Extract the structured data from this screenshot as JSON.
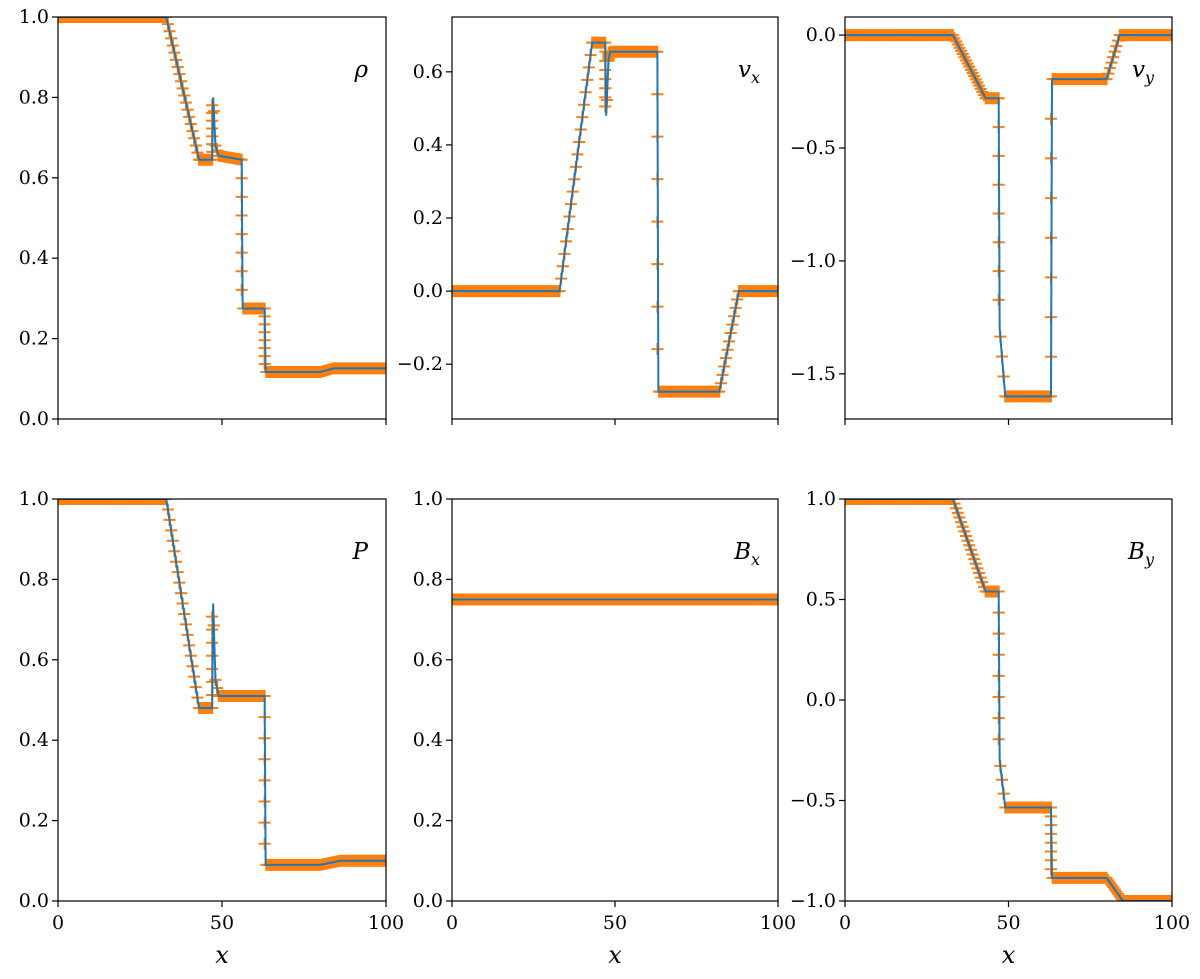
{
  "chart_data": [
    {
      "type": "line",
      "panel": "rho",
      "label": "ρ",
      "label_sub": "",
      "xlim": [
        0,
        100
      ],
      "ylim": [
        0,
        1.0
      ],
      "xticks": [
        0,
        50,
        100
      ],
      "yticks": [
        0.0,
        0.2,
        0.4,
        0.6,
        0.8,
        1.0
      ],
      "ytick_labels": [
        "0.0",
        "0.2",
        "0.4",
        "0.6",
        "0.8",
        "1.0"
      ],
      "xtick_labels": [
        "",
        "",
        ""
      ],
      "xlabel": "",
      "reference": {
        "x": [
          0,
          33,
          43,
          47,
          47.3,
          48,
          49,
          56,
          56.3,
          63,
          63.3,
          80,
          84,
          100
        ],
        "y": [
          1.0,
          1.0,
          0.645,
          0.645,
          0.8,
          0.68,
          0.655,
          0.645,
          0.275,
          0.275,
          0.117,
          0.117,
          0.126,
          0.126
        ]
      },
      "markers": {
        "x": [
          0,
          33,
          43,
          47,
          47.3,
          48,
          49,
          56,
          56.3,
          63,
          63.3,
          80,
          84,
          100
        ],
        "y": [
          1.0,
          1.0,
          0.645,
          0.645,
          0.8,
          0.68,
          0.655,
          0.645,
          0.275,
          0.275,
          0.117,
          0.117,
          0.126,
          0.126
        ]
      }
    },
    {
      "type": "line",
      "panel": "vx",
      "label": "v",
      "label_sub": "x",
      "xlim": [
        0,
        100
      ],
      "ylim": [
        -0.35,
        0.75
      ],
      "xticks": [
        0,
        50,
        100
      ],
      "yticks": [
        -0.2,
        0.0,
        0.2,
        0.4,
        0.6
      ],
      "ytick_labels": [
        "−0.2",
        "0.0",
        "0.2",
        "0.4",
        "0.6"
      ],
      "xtick_labels": [
        "",
        "",
        ""
      ],
      "xlabel": "",
      "reference": {
        "x": [
          0,
          33,
          43,
          47,
          47.3,
          48,
          48.5,
          63,
          63.3,
          82,
          88,
          100
        ],
        "y": [
          0.0,
          0.0,
          0.68,
          0.68,
          0.48,
          0.63,
          0.655,
          0.655,
          -0.275,
          -0.275,
          0.0,
          0.0
        ]
      },
      "markers": {
        "x": [
          0,
          33,
          43,
          47,
          47.3,
          48,
          48.5,
          63,
          63.3,
          82,
          88,
          100
        ],
        "y": [
          0.0,
          0.0,
          0.68,
          0.68,
          0.48,
          0.63,
          0.655,
          0.655,
          -0.275,
          -0.275,
          0.0,
          0.0
        ]
      }
    },
    {
      "type": "line",
      "panel": "vy",
      "label": "v",
      "label_sub": "y",
      "xlim": [
        0,
        100
      ],
      "ylim": [
        -1.7,
        0.08
      ],
      "xticks": [
        0,
        50,
        100
      ],
      "yticks": [
        -1.5,
        -1.0,
        -0.5,
        0.0
      ],
      "ytick_labels": [
        "−1.5",
        "−1.0",
        "−0.5",
        "0.0"
      ],
      "xtick_labels": [
        "",
        "",
        ""
      ],
      "xlabel": "",
      "reference": {
        "x": [
          0,
          33,
          43,
          47,
          47.3,
          49,
          63,
          63.3,
          80,
          84,
          100
        ],
        "y": [
          0.0,
          0.0,
          -0.28,
          -0.28,
          -1.3,
          -1.6,
          -1.6,
          -0.195,
          -0.195,
          0.0,
          0.0
        ]
      },
      "markers": {
        "x": [
          0,
          33,
          43,
          47,
          47.3,
          49,
          63,
          63.3,
          80,
          84,
          100
        ],
        "y": [
          0.0,
          0.0,
          -0.28,
          -0.28,
          -1.3,
          -1.6,
          -1.6,
          -0.195,
          -0.195,
          0.0,
          0.0
        ]
      }
    },
    {
      "type": "line",
      "panel": "P",
      "label": "P",
      "label_sub": "",
      "xlim": [
        0,
        100
      ],
      "ylim": [
        0,
        1.0
      ],
      "xticks": [
        0,
        50,
        100
      ],
      "yticks": [
        0.0,
        0.2,
        0.4,
        0.6,
        0.8,
        1.0
      ],
      "ytick_labels": [
        "0.0",
        "0.2",
        "0.4",
        "0.6",
        "0.8",
        "1.0"
      ],
      "xtick_labels": [
        "0",
        "50",
        "100"
      ],
      "xlabel": "x",
      "reference": {
        "x": [
          0,
          33,
          43,
          47,
          47.3,
          48,
          49,
          63,
          63.3,
          80,
          86,
          100
        ],
        "y": [
          1.0,
          1.0,
          0.48,
          0.48,
          0.74,
          0.55,
          0.51,
          0.51,
          0.09,
          0.09,
          0.1,
          0.1
        ]
      },
      "markers": {
        "x": [
          0,
          33,
          43,
          47,
          47.3,
          48,
          49,
          63,
          63.3,
          80,
          86,
          100
        ],
        "y": [
          1.0,
          1.0,
          0.48,
          0.48,
          0.74,
          0.55,
          0.51,
          0.51,
          0.09,
          0.09,
          0.1,
          0.1
        ]
      }
    },
    {
      "type": "line",
      "panel": "Bx",
      "label": "B",
      "label_sub": "x",
      "xlim": [
        0,
        100
      ],
      "ylim": [
        0,
        1.0
      ],
      "xticks": [
        0,
        50,
        100
      ],
      "yticks": [
        0.0,
        0.2,
        0.4,
        0.6,
        0.8,
        1.0
      ],
      "ytick_labels": [
        "0.0",
        "0.2",
        "0.4",
        "0.6",
        "0.8",
        "1.0"
      ],
      "xtick_labels": [
        "0",
        "50",
        "100"
      ],
      "xlabel": "x",
      "reference": {
        "x": [
          0,
          100
        ],
        "y": [
          0.75,
          0.75
        ]
      },
      "markers": {
        "x": [
          0,
          100
        ],
        "y": [
          0.75,
          0.75
        ]
      }
    },
    {
      "type": "line",
      "panel": "By",
      "label": "B",
      "label_sub": "y",
      "xlim": [
        0,
        100
      ],
      "ylim": [
        -1.0,
        1.0
      ],
      "xticks": [
        0,
        50,
        100
      ],
      "yticks": [
        -1.0,
        -0.5,
        0.0,
        0.5,
        1.0
      ],
      "ytick_labels": [
        "−1.0",
        "−0.5",
        "0.0",
        "0.5",
        "1.0"
      ],
      "xtick_labels": [
        "0",
        "50",
        "100"
      ],
      "xlabel": "x",
      "reference": {
        "x": [
          0,
          33,
          43,
          47,
          47.3,
          49,
          63,
          63.3,
          80,
          85,
          100
        ],
        "y": [
          1.0,
          1.0,
          0.54,
          0.54,
          -0.3,
          -0.535,
          -0.535,
          -0.885,
          -0.885,
          -1.0,
          -1.0
        ]
      },
      "markers": {
        "x": [
          0,
          33,
          43,
          47,
          47.3,
          49,
          63,
          63.3,
          80,
          85,
          100
        ],
        "y": [
          1.0,
          1.0,
          0.54,
          0.54,
          -0.3,
          -0.535,
          -0.535,
          -0.885,
          -0.885,
          -1.0,
          -1.0
        ]
      }
    }
  ]
}
